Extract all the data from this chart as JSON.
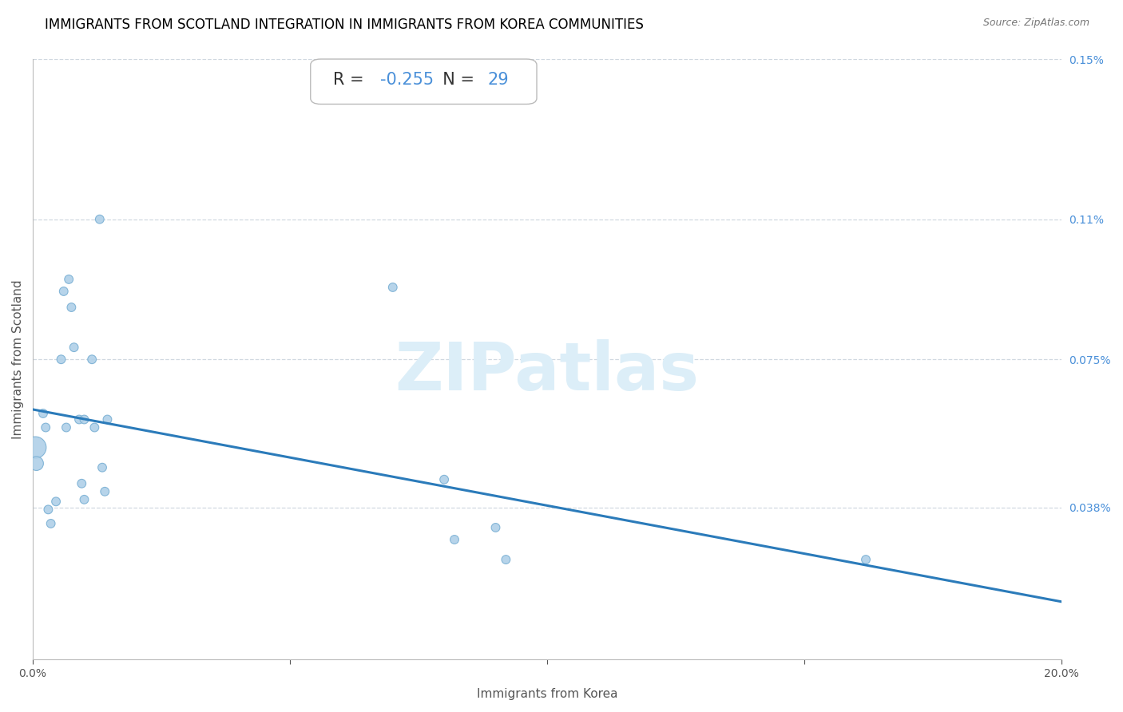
{
  "title": "IMMIGRANTS FROM SCOTLAND INTEGRATION IN IMMIGRANTS FROM KOREA COMMUNITIES",
  "source": "Source: ZipAtlas.com",
  "xlabel": "Immigrants from Korea",
  "ylabel": "Immigrants from Scotland",
  "R_label": "R = ",
  "R_value": "-0.255",
  "N_label": "  N = ",
  "N_value": "29",
  "xlim": [
    0.0,
    0.2
  ],
  "ylim": [
    0.0,
    0.0015
  ],
  "xtick_positions": [
    0.0,
    0.05,
    0.1,
    0.15,
    0.2
  ],
  "xtick_labels": [
    "0.0%",
    "",
    "",
    "",
    "20.0%"
  ],
  "ytick_positions": [
    0.00038,
    0.00075,
    0.0011,
    0.0015
  ],
  "ytick_labels": [
    "0.038%",
    "0.075%",
    "0.11%",
    "0.15%"
  ],
  "scatter_color": "#afd0e8",
  "scatter_edge_color": "#7ab0d4",
  "line_color": "#2b7bba",
  "grid_color": "#d0d8e0",
  "watermark": "ZIPatlas",
  "watermark_color": "#dceef8",
  "line_x0": 0.0,
  "line_y0": 0.000625,
  "line_x1": 0.2,
  "line_y1": 0.000145,
  "points": [
    [
      0.0005,
      0.00053
    ],
    [
      0.0007,
      0.00049
    ],
    [
      0.002,
      0.000615
    ],
    [
      0.0025,
      0.00058
    ],
    [
      0.003,
      0.000375
    ],
    [
      0.0035,
      0.00034
    ],
    [
      0.0045,
      0.000395
    ],
    [
      0.0055,
      0.00075
    ],
    [
      0.0065,
      0.00058
    ],
    [
      0.006,
      0.00092
    ],
    [
      0.007,
      0.00095
    ],
    [
      0.0075,
      0.00088
    ],
    [
      0.008,
      0.00078
    ],
    [
      0.009,
      0.0006
    ],
    [
      0.01,
      0.0006
    ],
    [
      0.0095,
      0.00044
    ],
    [
      0.01,
      0.0004
    ],
    [
      0.0115,
      0.00075
    ],
    [
      0.012,
      0.00058
    ],
    [
      0.013,
      0.0011
    ],
    [
      0.0135,
      0.00048
    ],
    [
      0.014,
      0.00042
    ],
    [
      0.0145,
      0.0006
    ],
    [
      0.07,
      0.00093
    ],
    [
      0.08,
      0.00045
    ],
    [
      0.082,
      0.0003
    ],
    [
      0.09,
      0.00033
    ],
    [
      0.092,
      0.00025
    ],
    [
      0.162,
      0.00025
    ]
  ],
  "point_sizes": [
    380,
    160,
    60,
    60,
    60,
    60,
    60,
    60,
    60,
    60,
    60,
    60,
    60,
    60,
    60,
    60,
    60,
    60,
    60,
    60,
    60,
    60,
    60,
    60,
    60,
    60,
    60,
    60,
    60
  ],
  "title_fontsize": 12,
  "axis_label_fontsize": 11,
  "tick_fontsize": 10,
  "annotation_fontsize": 15,
  "source_fontsize": 9,
  "watermark_fontsize": 60
}
